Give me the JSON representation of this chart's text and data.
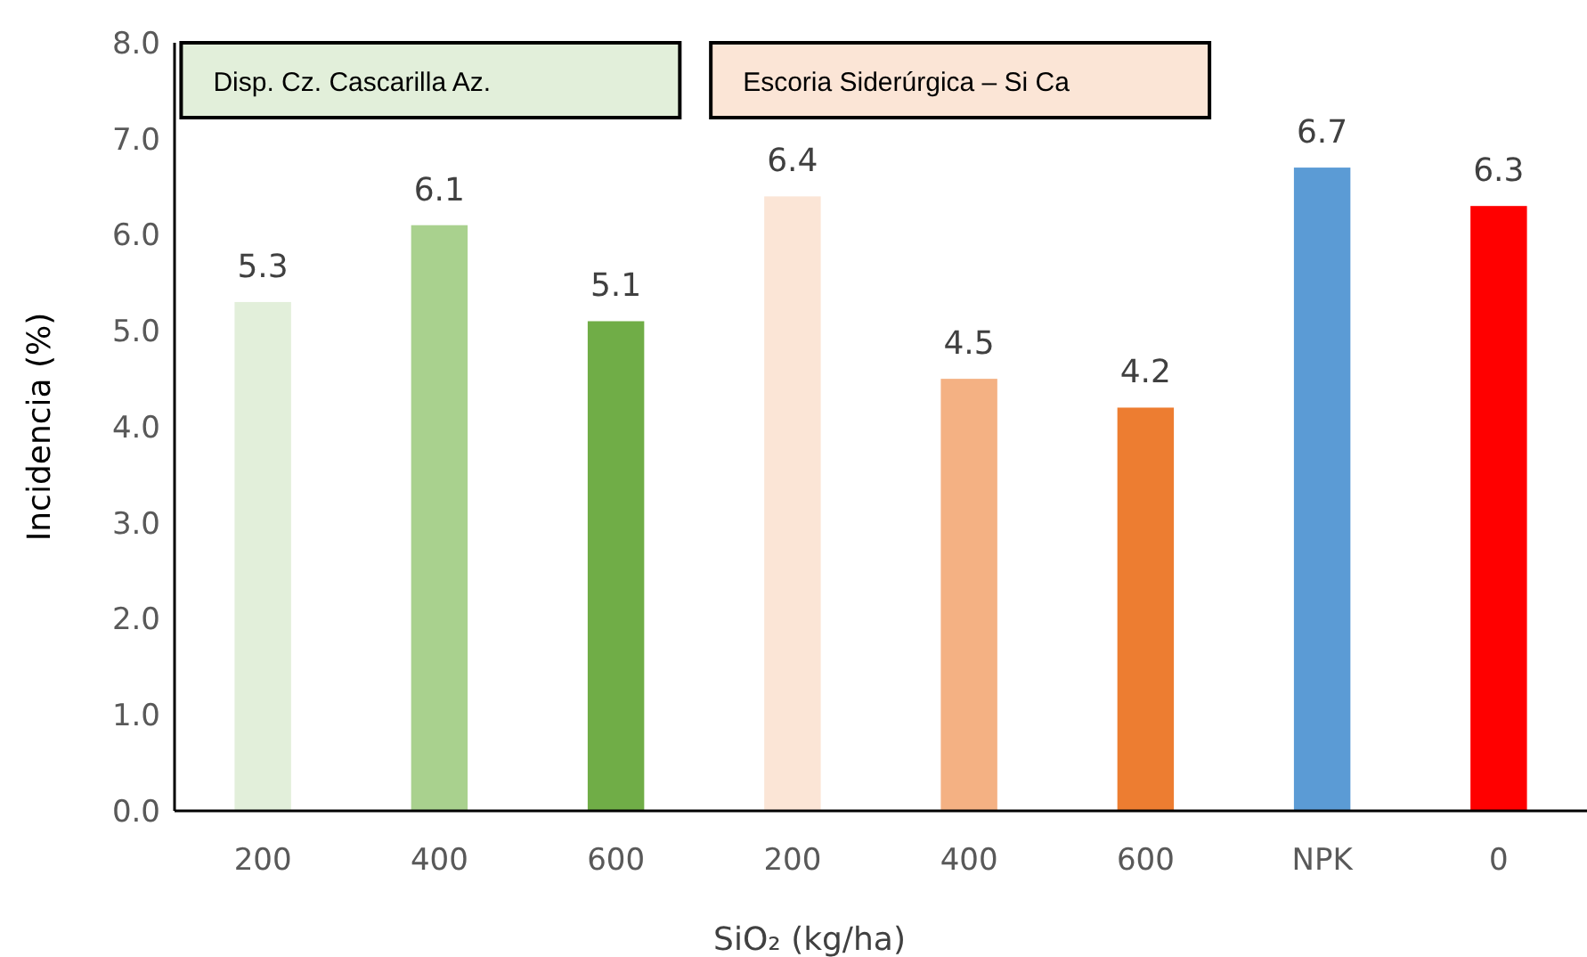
{
  "chart_data": {
    "type": "bar",
    "xlabel": "SiO₂ (kg/ha)",
    "ylabel": "Incidencia (%)",
    "categories": [
      "200",
      "400",
      "600",
      "200",
      "400",
      "600",
      "NPK",
      "0"
    ],
    "values": [
      5.3,
      6.1,
      5.1,
      6.4,
      4.5,
      4.2,
      6.7,
      6.3
    ],
    "colors": [
      "#e2efda",
      "#a9d18e",
      "#70ad47",
      "#fbe5d6",
      "#f4b183",
      "#ed7d31",
      "#5b9bd5",
      "#ff0000"
    ],
    "ylim": [
      0,
      8
    ],
    "yticks": [
      {
        "value": 0,
        "label": "0.0"
      },
      {
        "value": 1,
        "label": "1.0"
      },
      {
        "value": 2,
        "label": "2.0"
      },
      {
        "value": 3,
        "label": "3.0"
      },
      {
        "value": 4,
        "label": "4.0"
      },
      {
        "value": 5,
        "label": "5.0"
      },
      {
        "value": 6,
        "label": "6.0"
      },
      {
        "value": 7,
        "label": "7.0"
      },
      {
        "value": 8,
        "label": "8.0"
      }
    ],
    "data_labels": true,
    "annotations": [
      "Disp. Cz. Cascarilla Az.",
      "Escoria Siderúrgica – Si Ca"
    ]
  }
}
